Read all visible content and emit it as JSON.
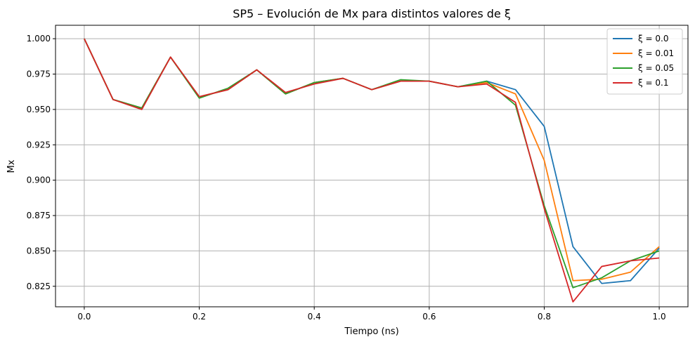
{
  "chart_data": {
    "type": "line",
    "title": "SP5 – Evolución de Mx para distintos valores de ξ",
    "xlabel": "Tiempo (ns)",
    "ylabel": "Mx",
    "xlim": [
      -0.05,
      1.05
    ],
    "ylim": [
      0.8105,
      1.0095
    ],
    "xticks": [
      0.0,
      0.2,
      0.4,
      0.6,
      0.8,
      1.0
    ],
    "xtick_labels": [
      "0.0",
      "0.2",
      "0.4",
      "0.6",
      "0.8",
      "1.0"
    ],
    "yticks": [
      0.825,
      0.85,
      0.875,
      0.9,
      0.925,
      0.95,
      0.975,
      1.0
    ],
    "ytick_labels": [
      "0.825",
      "0.850",
      "0.875",
      "0.900",
      "0.925",
      "0.950",
      "0.975",
      "1.000"
    ],
    "grid": true,
    "legend_position": "top-right",
    "x": [
      0.0,
      0.05,
      0.1,
      0.15,
      0.2,
      0.25,
      0.3,
      0.35,
      0.4,
      0.45,
      0.5,
      0.55,
      0.6,
      0.65,
      0.7,
      0.75,
      0.8,
      0.85,
      0.9,
      0.95,
      1.0
    ],
    "series": [
      {
        "name": "ξ = 0.0",
        "color": "#1f77b4",
        "values": [
          1.0,
          0.957,
          0.951,
          0.987,
          0.959,
          0.964,
          0.978,
          0.961,
          0.969,
          0.972,
          0.964,
          0.97,
          0.97,
          0.966,
          0.97,
          0.964,
          0.938,
          0.853,
          0.827,
          0.829,
          0.852
        ]
      },
      {
        "name": "ξ = 0.01",
        "color": "#ff7f0e",
        "values": [
          1.0,
          0.957,
          0.951,
          0.987,
          0.959,
          0.964,
          0.978,
          0.961,
          0.969,
          0.972,
          0.964,
          0.97,
          0.97,
          0.966,
          0.969,
          0.961,
          0.914,
          0.829,
          0.83,
          0.835,
          0.853
        ]
      },
      {
        "name": "ξ = 0.05",
        "color": "#2ca02c",
        "values": [
          1.0,
          0.957,
          0.951,
          0.987,
          0.958,
          0.965,
          0.978,
          0.961,
          0.969,
          0.972,
          0.964,
          0.971,
          0.97,
          0.966,
          0.97,
          0.953,
          0.882,
          0.824,
          0.831,
          0.843,
          0.85
        ]
      },
      {
        "name": "ξ = 0.1",
        "color": "#d62728",
        "values": [
          1.0,
          0.957,
          0.95,
          0.987,
          0.959,
          0.964,
          0.978,
          0.962,
          0.968,
          0.972,
          0.964,
          0.97,
          0.97,
          0.966,
          0.968,
          0.955,
          0.88,
          0.814,
          0.839,
          0.843,
          0.845
        ]
      }
    ]
  }
}
